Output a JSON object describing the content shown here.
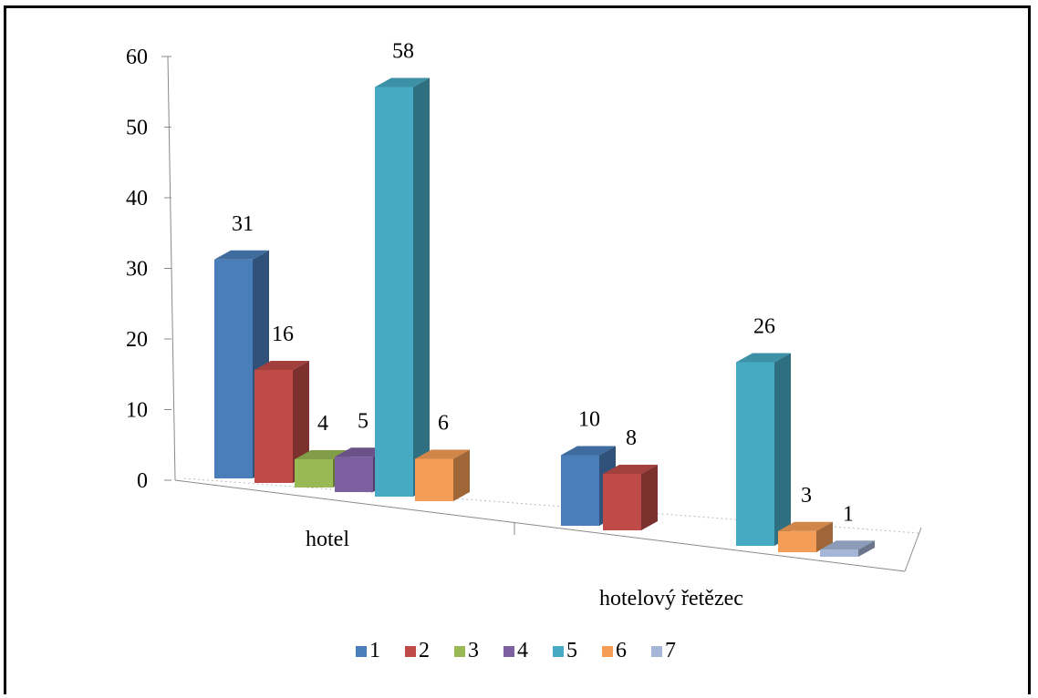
{
  "chart_data": {
    "type": "bar",
    "title": "",
    "xlabel": "",
    "ylabel": "",
    "categories": [
      "hotel",
      "hotelový řetězec"
    ],
    "ylim": [
      0,
      60
    ],
    "yticks": [
      "0",
      "10",
      "20",
      "30",
      "40",
      "50",
      "60"
    ],
    "grid": false,
    "legend_position": "bottom",
    "series": [
      {
        "name": "1",
        "color": "#4a7ebb",
        "values": [
          31,
          10
        ]
      },
      {
        "name": "2",
        "color": "#be4b48",
        "values": [
          16,
          8
        ]
      },
      {
        "name": "3",
        "color": "#98b954",
        "values": [
          4,
          null
        ]
      },
      {
        "name": "4",
        "color": "#7d60a0",
        "values": [
          5,
          null
        ]
      },
      {
        "name": "5",
        "color": "#46aac5",
        "values": [
          58,
          26
        ]
      },
      {
        "name": "6",
        "color": "#f59d56",
        "values": [
          6,
          3
        ]
      },
      {
        "name": "7",
        "color": "#a5b6d8",
        "values": [
          null,
          1
        ]
      }
    ]
  }
}
